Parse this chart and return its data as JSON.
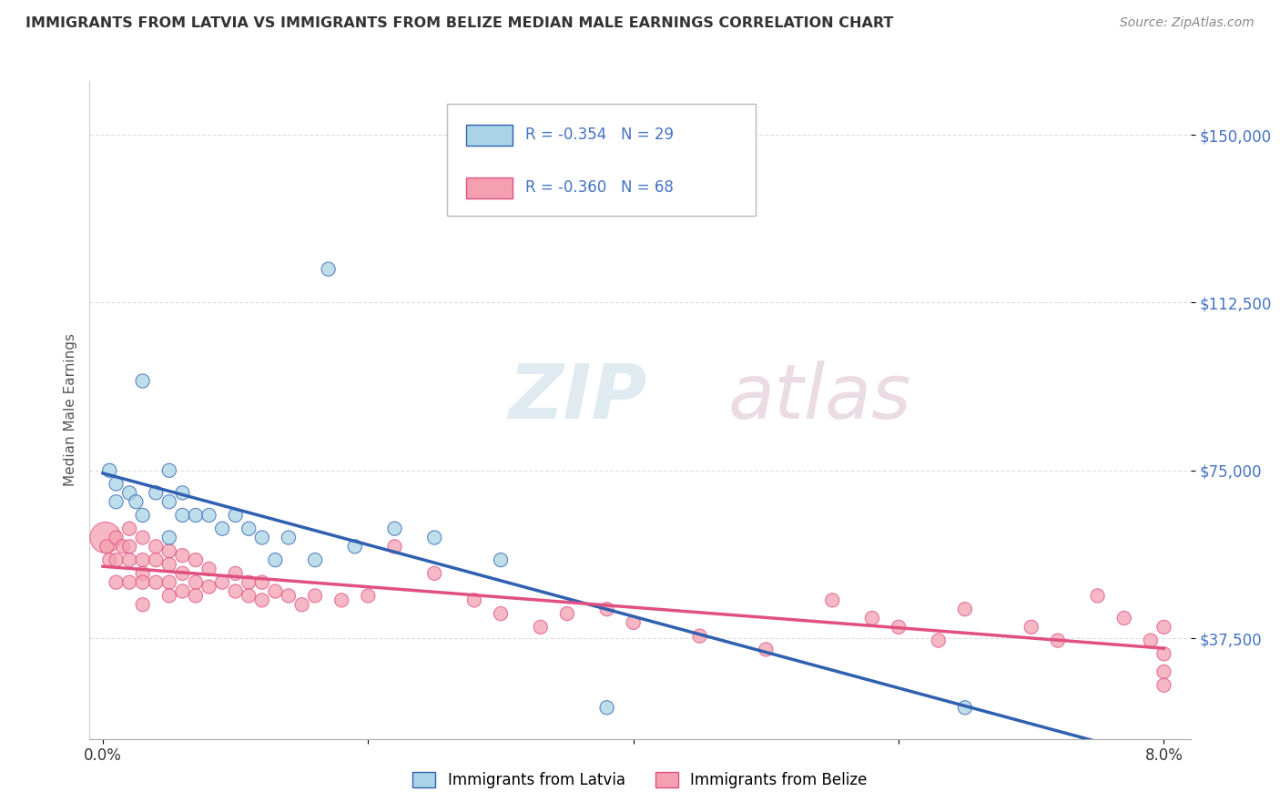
{
  "title": "IMMIGRANTS FROM LATVIA VS IMMIGRANTS FROM BELIZE MEDIAN MALE EARNINGS CORRELATION CHART",
  "source": "Source: ZipAtlas.com",
  "ylabel": "Median Male Earnings",
  "xlabel": "",
  "xlim": [
    -0.001,
    0.082
  ],
  "ylim": [
    15000,
    162000
  ],
  "yticks": [
    37500,
    75000,
    112500,
    150000
  ],
  "ytick_labels": [
    "$37,500",
    "$75,000",
    "$112,500",
    "$150,000"
  ],
  "xticks": [
    0.0,
    0.02,
    0.04,
    0.06,
    0.08
  ],
  "xtick_labels": [
    "0.0%",
    "",
    "",
    "",
    "8.0%"
  ],
  "legend_R": [
    -0.354,
    -0.36
  ],
  "legend_N": [
    29,
    68
  ],
  "legend_labels": [
    "Immigrants from Latvia",
    "Immigrants from Belize"
  ],
  "scatter_latvia_x": [
    0.0005,
    0.001,
    0.001,
    0.002,
    0.0025,
    0.003,
    0.003,
    0.004,
    0.005,
    0.005,
    0.005,
    0.006,
    0.006,
    0.007,
    0.008,
    0.009,
    0.01,
    0.011,
    0.012,
    0.013,
    0.014,
    0.016,
    0.017,
    0.019,
    0.022,
    0.025,
    0.03,
    0.038,
    0.065
  ],
  "scatter_latvia_y": [
    75000,
    72000,
    68000,
    70000,
    68000,
    65000,
    95000,
    70000,
    68000,
    75000,
    60000,
    65000,
    70000,
    65000,
    65000,
    62000,
    65000,
    62000,
    60000,
    55000,
    60000,
    55000,
    120000,
    58000,
    62000,
    60000,
    55000,
    22000,
    22000
  ],
  "scatter_belize_x": [
    0.0002,
    0.0003,
    0.0005,
    0.001,
    0.001,
    0.001,
    0.0015,
    0.002,
    0.002,
    0.002,
    0.002,
    0.003,
    0.003,
    0.003,
    0.003,
    0.003,
    0.004,
    0.004,
    0.004,
    0.005,
    0.005,
    0.005,
    0.005,
    0.006,
    0.006,
    0.006,
    0.007,
    0.007,
    0.007,
    0.008,
    0.008,
    0.009,
    0.01,
    0.01,
    0.011,
    0.011,
    0.012,
    0.012,
    0.013,
    0.014,
    0.015,
    0.016,
    0.018,
    0.02,
    0.022,
    0.025,
    0.028,
    0.03,
    0.033,
    0.035,
    0.038,
    0.04,
    0.045,
    0.05,
    0.055,
    0.058,
    0.06,
    0.063,
    0.065,
    0.07,
    0.072,
    0.075,
    0.077,
    0.079,
    0.08,
    0.08,
    0.08,
    0.08
  ],
  "scatter_belize_y": [
    60000,
    58000,
    55000,
    60000,
    55000,
    50000,
    58000,
    62000,
    58000,
    55000,
    50000,
    60000,
    55000,
    52000,
    50000,
    45000,
    58000,
    55000,
    50000,
    57000,
    54000,
    50000,
    47000,
    56000,
    52000,
    48000,
    55000,
    50000,
    47000,
    53000,
    49000,
    50000,
    52000,
    48000,
    50000,
    47000,
    50000,
    46000,
    48000,
    47000,
    45000,
    47000,
    46000,
    47000,
    58000,
    52000,
    46000,
    43000,
    40000,
    43000,
    44000,
    41000,
    38000,
    35000,
    46000,
    42000,
    40000,
    37000,
    44000,
    40000,
    37000,
    47000,
    42000,
    37000,
    40000,
    34000,
    30000,
    27000
  ],
  "scatter_size": 120,
  "scatter_large_size": 600,
  "color_latvia": "#a8d4e6",
  "color_belize": "#f4a0b0",
  "color_blue_line": "#3060b0",
  "color_pink_line": "#e05080",
  "color_axis_values": "#4472c4",
  "background_color": "#ffffff",
  "grid_color": "#dddddd",
  "watermark_zip": "ZIP",
  "watermark_atlas": "atlas",
  "watermark_color_zip": "#c8d8e8",
  "watermark_color_atlas": "#c8a8b8"
}
